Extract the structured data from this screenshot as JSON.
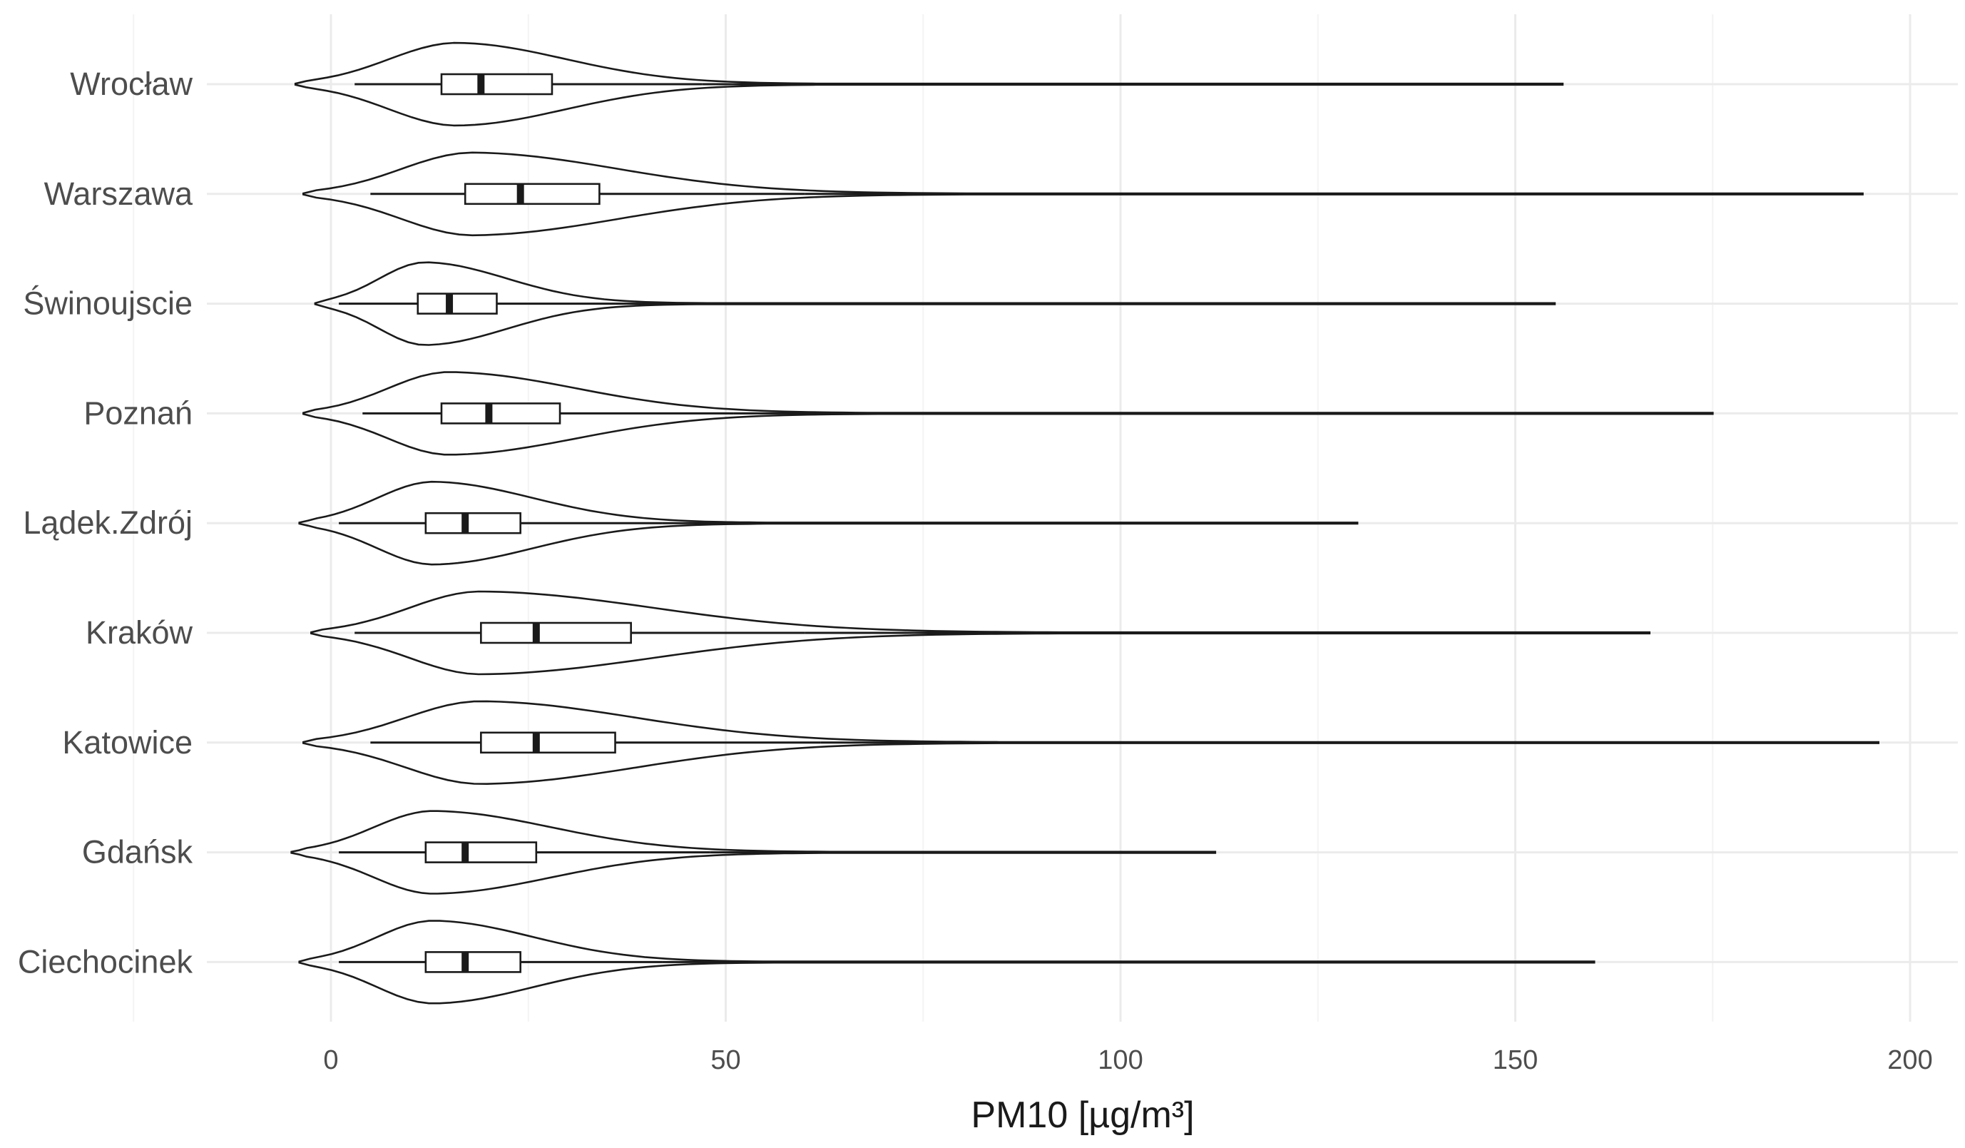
{
  "chart_data": {
    "type": "violin",
    "orientation": "horizontal",
    "title": "",
    "xlabel": "PM10 [µg/m³]",
    "ylabel": "",
    "xlim": [
      -14,
      206
    ],
    "x_ticks": [
      0,
      50,
      100,
      150,
      200
    ],
    "grid": true,
    "legend": "none",
    "colors": {
      "line": "#1a1a1a",
      "box_fill": "#ffffff",
      "grid": "#ebebeb",
      "text": "#4d4d4d"
    },
    "categories": [
      "Wrocław",
      "Warszawa",
      "Świnoujscie",
      "Poznań",
      "Lądek.Zdrój",
      "Kraków",
      "Katowice",
      "Gdańsk",
      "Ciechocinek"
    ],
    "series": [
      {
        "category": "Wrocław",
        "min": -4.5,
        "max": 156,
        "q1": 14,
        "median": 19,
        "q3": 28,
        "whisker_low": 3,
        "whisker_high": 47,
        "mode": 16
      },
      {
        "category": "Warszawa",
        "min": -3.5,
        "max": 194,
        "q1": 17,
        "median": 24,
        "q3": 34,
        "whisker_low": 5,
        "whisker_high": 60,
        "mode": 18
      },
      {
        "category": "Świnoujscie",
        "min": -2,
        "max": 155,
        "q1": 11,
        "median": 15,
        "q3": 21,
        "whisker_low": 1,
        "whisker_high": 36,
        "mode": 12
      },
      {
        "category": "Poznań",
        "min": -3.5,
        "max": 175,
        "q1": 14,
        "median": 20,
        "q3": 29,
        "whisker_low": 4,
        "whisker_high": 51,
        "mode": 15
      },
      {
        "category": "Lądek.Zdrój",
        "min": -4,
        "max": 130,
        "q1": 12,
        "median": 17,
        "q3": 24,
        "whisker_low": 1,
        "whisker_high": 42,
        "mode": 13
      },
      {
        "category": "Kraków",
        "min": -2.5,
        "max": 167,
        "q1": 19,
        "median": 26,
        "q3": 38,
        "whisker_low": 3,
        "whisker_high": 60,
        "mode": 19
      },
      {
        "category": "Katowice",
        "min": -3.5,
        "max": 196,
        "q1": 19,
        "median": 26,
        "q3": 36,
        "whisker_low": 5,
        "whisker_high": 62,
        "mode": 19
      },
      {
        "category": "Gdańsk",
        "min": -5,
        "max": 112,
        "q1": 12,
        "median": 17,
        "q3": 26,
        "whisker_low": 1,
        "whisker_high": 48,
        "mode": 13
      },
      {
        "category": "Ciechocinek",
        "min": -4,
        "max": 160,
        "q1": 12,
        "median": 17,
        "q3": 24,
        "whisker_low": 1,
        "whisker_high": 42,
        "mode": 13
      }
    ]
  }
}
